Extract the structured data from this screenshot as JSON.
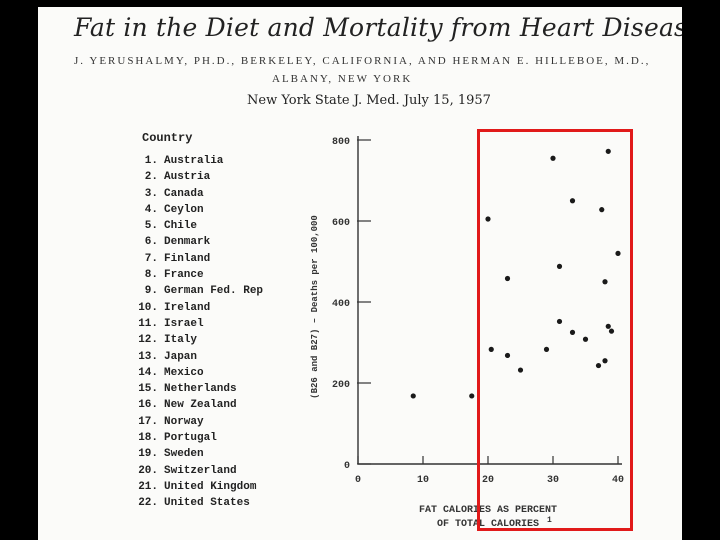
{
  "header": {
    "title": "Fat in the Diet and Mortality from Heart Disease",
    "authors_line1": "J. YERUSHALMY, PH.D., BERKELEY, CALIFORNIA, AND HERMAN E. HILLEBOE, M.D.,",
    "authors_line2": "ALBANY, NEW YORK",
    "citation": "New York State J. Med.   July 15, 1957"
  },
  "legend": {
    "heading": "Country",
    "countries": [
      {
        "num": "1.",
        "name": "Australia"
      },
      {
        "num": "2.",
        "name": "Austria"
      },
      {
        "num": "3.",
        "name": "Canada"
      },
      {
        "num": "4.",
        "name": "Ceylon"
      },
      {
        "num": "5.",
        "name": "Chile"
      },
      {
        "num": "6.",
        "name": "Denmark"
      },
      {
        "num": "7.",
        "name": "Finland"
      },
      {
        "num": "8.",
        "name": "France"
      },
      {
        "num": "9.",
        "name": "German Fed. Rep"
      },
      {
        "num": "10.",
        "name": "Ireland"
      },
      {
        "num": "11.",
        "name": "Israel"
      },
      {
        "num": "12.",
        "name": "Italy"
      },
      {
        "num": "13.",
        "name": "Japan"
      },
      {
        "num": "14.",
        "name": "Mexico"
      },
      {
        "num": "15.",
        "name": "Netherlands"
      },
      {
        "num": "16.",
        "name": "New Zealand"
      },
      {
        "num": "17.",
        "name": "Norway"
      },
      {
        "num": "18.",
        "name": "Portugal"
      },
      {
        "num": "19.",
        "name": "Sweden"
      },
      {
        "num": "20.",
        "name": "Switzerland"
      },
      {
        "num": "21.",
        "name": "United Kingdom"
      },
      {
        "num": "22.",
        "name": "United States"
      }
    ]
  },
  "chart_data": {
    "type": "scatter",
    "title": "Fat in the Diet and Mortality from Heart Disease",
    "xlabel_line1": "FAT CALORIES AS PERCENT",
    "xlabel_line2": "OF TOTAL CALORIES",
    "xlabel_mark": "1",
    "ylabel": "(B26 and B27) – Deaths per 100,000",
    "xlim": [
      0,
      40
    ],
    "ylim": [
      0,
      800
    ],
    "xticks": [
      0,
      10,
      20,
      30,
      40
    ],
    "yticks": [
      0,
      200,
      400,
      600,
      800
    ],
    "points": [
      {
        "x": 8.5,
        "y": 168
      },
      {
        "x": 17.5,
        "y": 168
      },
      {
        "x": 20,
        "y": 605
      },
      {
        "x": 20.5,
        "y": 283
      },
      {
        "x": 23,
        "y": 458
      },
      {
        "x": 23,
        "y": 268
      },
      {
        "x": 25,
        "y": 232
      },
      {
        "x": 29,
        "y": 283
      },
      {
        "x": 30,
        "y": 755
      },
      {
        "x": 31,
        "y": 488
      },
      {
        "x": 31,
        "y": 352
      },
      {
        "x": 33,
        "y": 650
      },
      {
        "x": 33,
        "y": 325
      },
      {
        "x": 35,
        "y": 308
      },
      {
        "x": 37,
        "y": 243
      },
      {
        "x": 37.5,
        "y": 628
      },
      {
        "x": 38,
        "y": 450
      },
      {
        "x": 38,
        "y": 255
      },
      {
        "x": 38.5,
        "y": 772
      },
      {
        "x": 38.5,
        "y": 340
      },
      {
        "x": 39,
        "y": 328
      },
      {
        "x": 40,
        "y": 520
      }
    ],
    "highlight_color": "#e11a1a"
  }
}
